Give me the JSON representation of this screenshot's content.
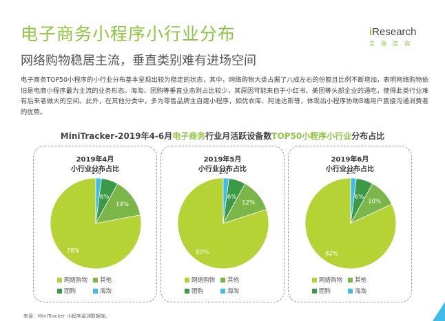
{
  "header": {
    "title": "电子商务小程序小行业分布",
    "subtitle": "网络购物稳居主流，垂直类别难有进场空间"
  },
  "logo": {
    "prefix": "i",
    "name": "Research",
    "subtitle": "艾瑞咨询"
  },
  "body_text": "电子商务TOP50小程序的小行业分布基本呈现出较为稳定的状态，其中，网络购物大类占据了八成左右的份额且比例不断增加，表明网络购物依旧是电商小程序最为主流的业务形态。海淘、团购等垂直业态则占比较少，其原因可能来自于小红书、美团等头部企业的通吃，使得此类行业难有后来者做大的空间。此外，在其他分类中，多为零售品牌主自建小程序，如优衣库、阿迪达斯等，体现出小程序协助B端用户直接沟通消费者的优势。",
  "chart_heading": {
    "part1": "MiniTracker-2019年4-6月",
    "part2": "电子商务",
    "part3": "行业月活跃设备数",
    "part4": "TOP50小程序小行业",
    "part5": "分布占比"
  },
  "colors": {
    "accent": "#8dc63f",
    "online_shopping": "#b5d334",
    "other": "#7ab648",
    "group_buy": "#3a9a45",
    "haitao": "#3fbde6"
  },
  "chart_data": [
    {
      "type": "pie",
      "title": "2019年4月",
      "subtitle": "小行业分布占比",
      "labels": [
        "网络购物",
        "其他",
        "团购",
        "海淘"
      ],
      "values": [
        78,
        14,
        6,
        2
      ],
      "value_labels": [
        "78%",
        "14%",
        "6%",
        "2%"
      ]
    },
    {
      "type": "pie",
      "title": "2019年5月",
      "subtitle": "小行业分布占比",
      "labels": [
        "网络购物",
        "其他",
        "团购",
        "海淘"
      ],
      "values": [
        80,
        12,
        6,
        2
      ],
      "value_labels": [
        "80%",
        "12%",
        "6%",
        "2%"
      ]
    },
    {
      "type": "pie",
      "title": "2019年6月",
      "subtitle": "小行业分布占比",
      "labels": [
        "网络购物",
        "其他",
        "团购",
        "海淘"
      ],
      "values": [
        82,
        10,
        6,
        2
      ],
      "value_labels": [
        "82%",
        "10%",
        "6%",
        "2%"
      ]
    }
  ],
  "source": "来源：MiniTracker 小程序监测数据库。"
}
